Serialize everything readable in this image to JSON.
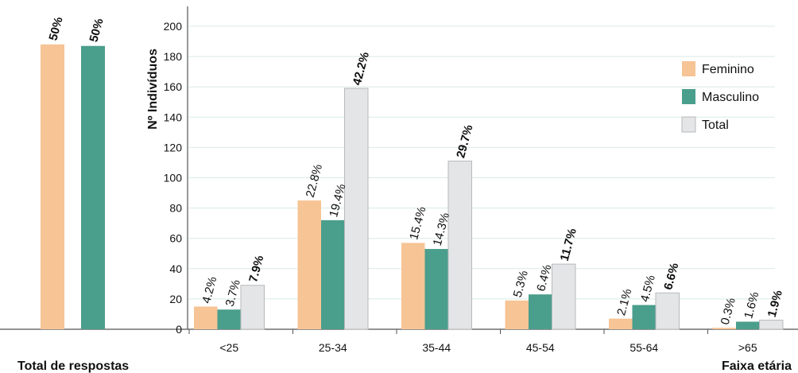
{
  "chart_data": [
    {
      "type": "bar",
      "xlabel": "Total de respostas",
      "categories": [
        ""
      ],
      "series": [
        {
          "name": "Feminino",
          "values": [
            188
          ],
          "labels": [
            "50%"
          ]
        },
        {
          "name": "Masculino",
          "values": [
            187
          ],
          "labels": [
            "50%"
          ]
        }
      ],
      "ylim": [
        0,
        210
      ]
    },
    {
      "type": "bar",
      "ylabel": "Nº Indivíduos",
      "xlabel": "Faixa etária",
      "categories": [
        "<25",
        "25-34",
        "35-44",
        "45-54",
        "55-64",
        ">65"
      ],
      "series": [
        {
          "name": "Feminino",
          "values": [
            15,
            85,
            57,
            19,
            7,
            1
          ],
          "labels": [
            "4.2%",
            "22.8%",
            "15.4%",
            "5.3%",
            "2.1%",
            "0.3%"
          ]
        },
        {
          "name": "Masculino",
          "values": [
            13,
            72,
            53,
            23,
            16,
            5
          ],
          "labels": [
            "3.7%",
            "19.4%",
            "14.3%",
            "6.4%",
            "4.5%",
            "1.6%"
          ]
        },
        {
          "name": "Total",
          "values": [
            29,
            159,
            111,
            43,
            24,
            6
          ],
          "labels": [
            "7.9%",
            "42.2%",
            "29.7%",
            "11.7%",
            "6.6%",
            "1.9%"
          ]
        }
      ],
      "yticks": [
        0,
        20,
        40,
        60,
        80,
        100,
        120,
        140,
        160,
        180,
        200
      ],
      "ylim": [
        0,
        210
      ],
      "grid": true,
      "legend": "top-right"
    }
  ],
  "colors": {
    "Feminino": "#f6c495",
    "Masculino": "#4a9e8c",
    "Total": "#e4e5e7"
  }
}
